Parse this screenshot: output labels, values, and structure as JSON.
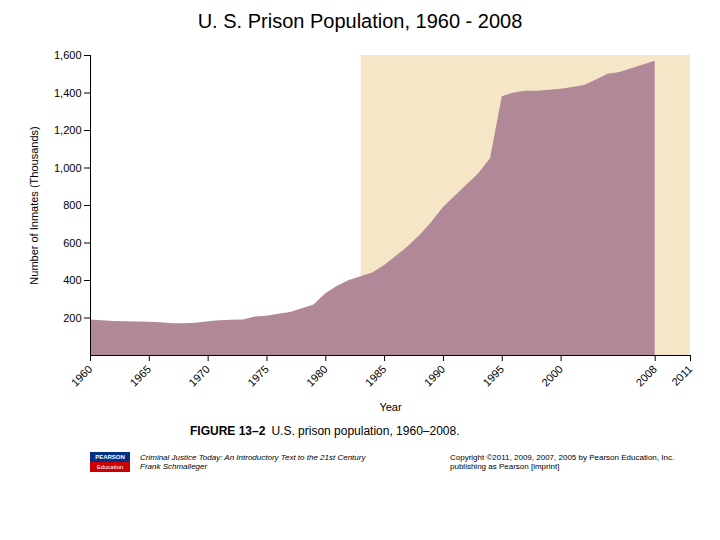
{
  "chart_data": {
    "type": "area",
    "title": "U. S. Prison Population, 1960 - 2008",
    "xlabel": "Year",
    "ylabel": "Number of Inmates (Thousands)",
    "x": [
      1960,
      1961,
      1962,
      1963,
      1964,
      1965,
      1966,
      1967,
      1968,
      1969,
      1970,
      1971,
      1972,
      1973,
      1974,
      1975,
      1976,
      1977,
      1978,
      1979,
      1980,
      1981,
      1982,
      1983,
      1984,
      1985,
      1986,
      1987,
      1988,
      1989,
      1990,
      1991,
      1992,
      1993,
      1994,
      1995,
      1996,
      1997,
      1998,
      1999,
      2000,
      2001,
      2002,
      2003,
      2004,
      2005,
      2006,
      2007,
      2008
    ],
    "values": [
      190,
      185,
      182,
      180,
      179,
      178,
      175,
      170,
      170,
      172,
      180,
      185,
      188,
      190,
      205,
      210,
      220,
      230,
      250,
      270,
      330,
      370,
      400,
      420,
      440,
      480,
      530,
      580,
      640,
      710,
      790,
      850,
      910,
      970,
      1050,
      1380,
      1400,
      1410,
      1410,
      1415,
      1420,
      1430,
      1440,
      1470,
      1500,
      1510,
      1530,
      1550,
      1570
    ],
    "color": "#b08898",
    "spans": [
      {
        "x0": 1983,
        "x1": 2011,
        "color": "#f5e6c8"
      }
    ],
    "xlim": [
      1960,
      2011
    ],
    "ylim": [
      0,
      1600
    ],
    "xticks": [
      1960,
      1965,
      1970,
      1975,
      1980,
      1985,
      1990,
      1995,
      2000,
      2008,
      2011
    ],
    "yticks": [
      200,
      400,
      600,
      800,
      {
        "value": 1000,
        "label": "1,000"
      },
      {
        "value": 1200,
        "label": "1,200"
      },
      {
        "value": 1400,
        "label": "1,400"
      },
      {
        "value": 1600,
        "label": "1,600"
      }
    ],
    "grid": false,
    "caption": {
      "label": "FIGURE 13–2",
      "text": "U.S. prison population, 1960–2008."
    },
    "annotations": [
      "Criminal Justice Today: An Introductory Text to the 21st Century",
      "Frank Schmalleger",
      "Copyright ©2011, 2009, 2007, 2005 by Pearson Education, Inc.",
      "publishing as Pearson [imprint]",
      "PEARSON",
      "Education"
    ]
  }
}
